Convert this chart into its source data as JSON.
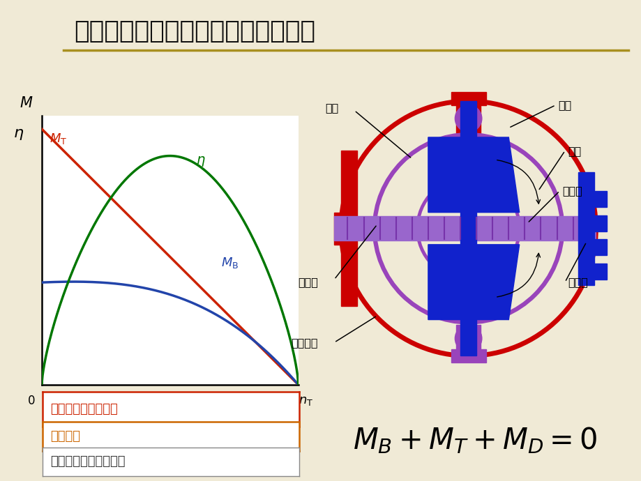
{
  "title": "二、液力变矩器基本结构和工作原理",
  "bg_color": "#f0ead6",
  "sidebar_color": "#6b6b1e",
  "underline_color": "#a89020",
  "curve_MT_color": "#cc2200",
  "curve_eta_color": "#007700",
  "curve_MB_color": "#2244aa",
  "box1_text": "具有良好的自适应性",
  "box1_text_color": "#cc2200",
  "box1_border_color": "#cc2200",
  "box2_text": "减振作用",
  "box2_text_color": "#cc6600",
  "box2_border_color": "#cc6600",
  "box3_text": "传动效率低、系统复杂",
  "box3_text_color": "#333333",
  "box3_border_color": "#888888",
  "label_wolun": "渦轮",
  "label_benglun": "泵轮",
  "label_daolun": "导轮",
  "label_daolunzhou": "导轮轴",
  "label_shuruzhu": "输入轴",
  "label_shuchuzhou": "输出轴",
  "label_bianjiqi": "变矩器壳"
}
